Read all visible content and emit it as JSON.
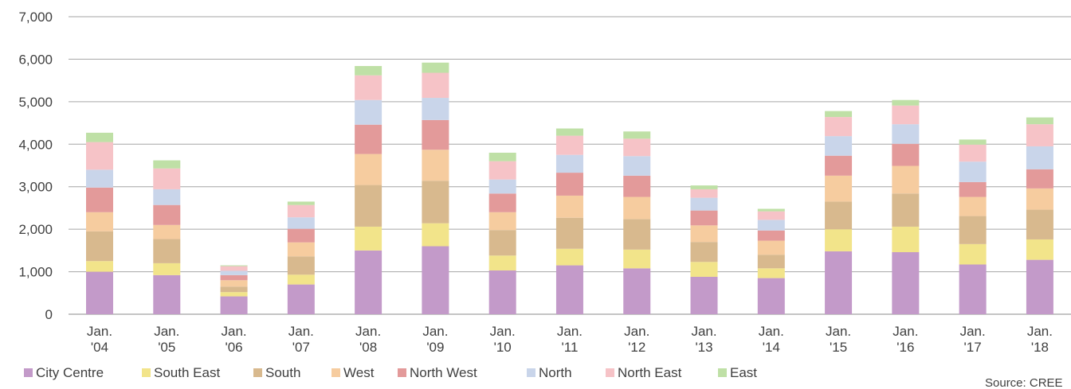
{
  "chart_data": {
    "type": "bar",
    "stacked": true,
    "categories": [
      [
        "Jan.",
        "'04"
      ],
      [
        "Jan.",
        "'05"
      ],
      [
        "Jan.",
        "'06"
      ],
      [
        "Jan.",
        "'07"
      ],
      [
        "Jan.",
        "'08"
      ],
      [
        "Jan.",
        "'09"
      ],
      [
        "Jan.",
        "'10"
      ],
      [
        "Jan.",
        "'11"
      ],
      [
        "Jan.",
        "'12"
      ],
      [
        "Jan.",
        "'13"
      ],
      [
        "Jan.",
        "'14"
      ],
      [
        "Jan.",
        "'15"
      ],
      [
        "Jan.",
        "'16"
      ],
      [
        "Jan.",
        "'17"
      ],
      [
        "Jan.",
        "'18"
      ]
    ],
    "ylim": [
      0,
      7000
    ],
    "yticks": [
      "0",
      "1,000",
      "2,000",
      "3,000",
      "4,000",
      "5,000",
      "6,000",
      "7,000"
    ],
    "ytick_values": [
      0,
      1000,
      2000,
      3000,
      4000,
      5000,
      6000,
      7000
    ],
    "grid": true,
    "legend_position": "bottom-left",
    "source": "Source: CREE",
    "series": [
      {
        "name": "City Centre",
        "color": "#c39ac9",
        "values": [
          1000,
          920,
          420,
          700,
          1500,
          1600,
          1030,
          1150,
          1080,
          880,
          850,
          1480,
          1460,
          1170,
          1280
        ]
      },
      {
        "name": "South East",
        "color": "#f2e48a",
        "values": [
          250,
          280,
          100,
          230,
          560,
          540,
          350,
          390,
          440,
          350,
          230,
          520,
          600,
          480,
          480
        ]
      },
      {
        "name": "South",
        "color": "#d8b98e",
        "values": [
          700,
          570,
          130,
          430,
          980,
          1000,
          600,
          730,
          720,
          470,
          320,
          650,
          780,
          660,
          700
        ]
      },
      {
        "name": "West",
        "color": "#f6cc9f",
        "values": [
          450,
          330,
          150,
          330,
          730,
          730,
          420,
          520,
          520,
          390,
          330,
          610,
          650,
          450,
          500
        ]
      },
      {
        "name": "North West",
        "color": "#e39a9a",
        "values": [
          580,
          470,
          120,
          320,
          690,
          700,
          440,
          540,
          500,
          350,
          240,
          470,
          520,
          350,
          450
        ]
      },
      {
        "name": "North",
        "color": "#c9d5ea",
        "values": [
          420,
          370,
          100,
          270,
          580,
          520,
          330,
          420,
          460,
          300,
          250,
          460,
          460,
          480,
          540
        ]
      },
      {
        "name": "North East",
        "color": "#f6c3c7",
        "values": [
          650,
          490,
          110,
          290,
          580,
          590,
          430,
          450,
          410,
          200,
          200,
          450,
          440,
          400,
          520
        ]
      },
      {
        "name": "East",
        "color": "#bfe0a6",
        "values": [
          220,
          190,
          20,
          80,
          220,
          240,
          200,
          170,
          170,
          90,
          60,
          140,
          130,
          120,
          160
        ]
      }
    ]
  }
}
